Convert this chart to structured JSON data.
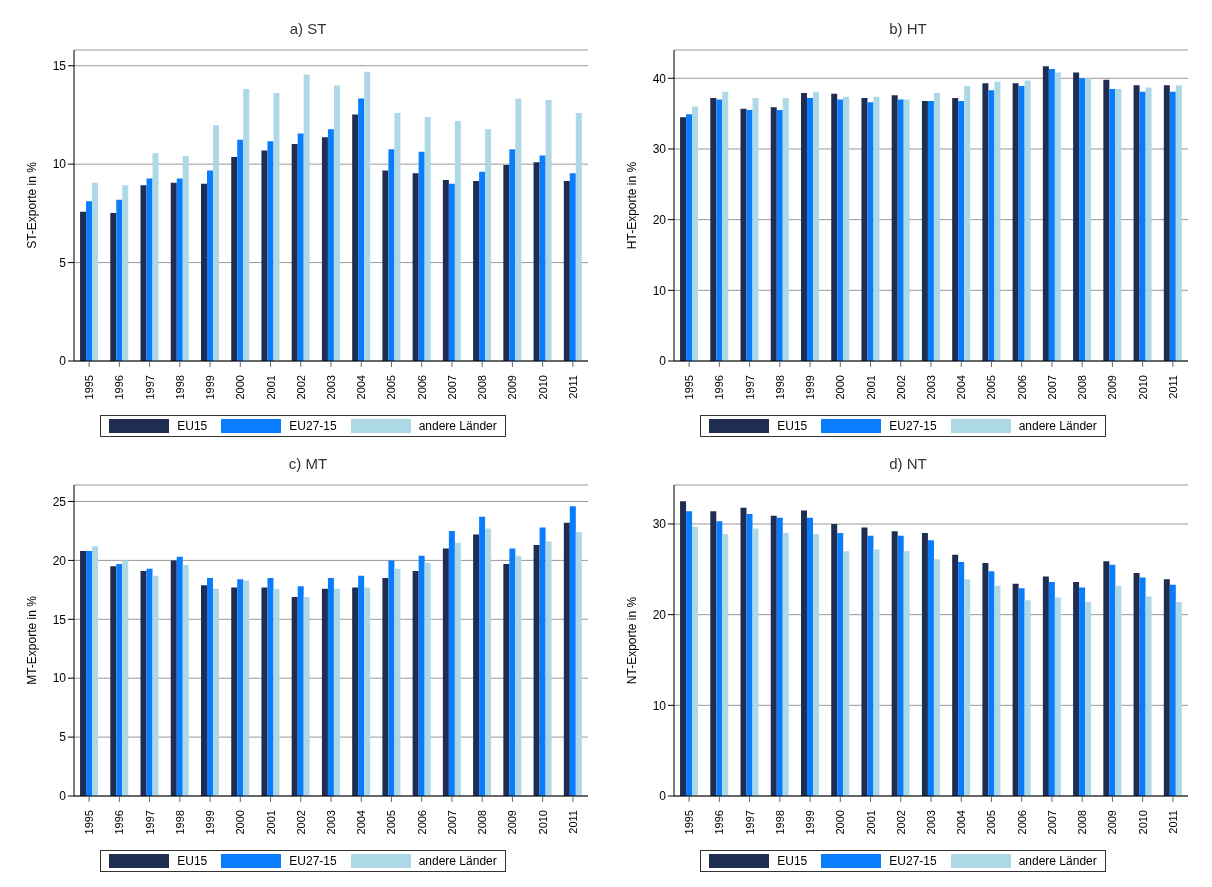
{
  "chart_data": [
    {
      "type": "bar",
      "title": "a) ST",
      "ylabel": "ST-Exporte in %",
      "categories": [
        "1995",
        "1996",
        "1997",
        "1998",
        "1999",
        "2000",
        "2001",
        "2002",
        "2003",
        "2004",
        "2005",
        "2006",
        "2007",
        "2008",
        "2009",
        "2010",
        "2011"
      ],
      "ylim": [
        0,
        15.8
      ],
      "yticks": [
        0,
        5,
        10,
        15
      ],
      "grid": "y",
      "legend": "bottom",
      "series": [
        {
          "name": "EU15",
          "color": "#1f2d52",
          "values": [
            7.58,
            7.52,
            8.93,
            9.06,
            9.0,
            10.36,
            10.69,
            11.03,
            11.37,
            12.52,
            9.68,
            9.54,
            9.2,
            9.14,
            9.96,
            10.1,
            9.14
          ]
        },
        {
          "name": "EU27-15",
          "color": "#0a7dfc",
          "values": [
            8.11,
            8.19,
            9.27,
            9.27,
            9.68,
            11.24,
            11.16,
            11.56,
            11.77,
            13.34,
            10.76,
            10.63,
            9.0,
            9.62,
            10.76,
            10.44,
            9.54
          ]
        },
        {
          "name": "andere Länder",
          "color": "#add8e6",
          "values": [
            9.06,
            8.93,
            10.55,
            10.42,
            11.98,
            13.82,
            13.61,
            14.56,
            14.0,
            14.69,
            12.6,
            12.39,
            12.19,
            11.77,
            13.34,
            13.26,
            12.6
          ]
        }
      ]
    },
    {
      "type": "bar",
      "title": "b) HT",
      "ylabel": "HT-Exporte in %",
      "categories": [
        "1995",
        "1996",
        "1997",
        "1998",
        "1999",
        "2000",
        "2001",
        "2002",
        "2003",
        "2004",
        "2005",
        "2006",
        "2007",
        "2008",
        "2009",
        "2010",
        "2011"
      ],
      "ylim": [
        0,
        44
      ],
      "yticks": [
        0,
        10,
        20,
        30,
        40
      ],
      "grid": "y",
      "legend": "bottom",
      "series": [
        {
          "name": "EU15",
          "color": "#1f2d52",
          "values": [
            34.5,
            37.2,
            35.7,
            35.9,
            37.9,
            37.8,
            37.2,
            37.6,
            36.8,
            37.2,
            39.3,
            39.3,
            41.7,
            40.8,
            39.8,
            39.0,
            39.0
          ]
        },
        {
          "name": "EU27-15",
          "color": "#0a7dfc",
          "values": [
            34.9,
            37.0,
            35.5,
            35.5,
            37.2,
            37.0,
            36.6,
            37.0,
            36.8,
            36.8,
            38.3,
            38.9,
            41.3,
            40.0,
            38.5,
            38.1,
            38.1
          ]
        },
        {
          "name": "andere Länder",
          "color": "#add8e6",
          "values": [
            36.0,
            38.1,
            37.2,
            37.2,
            38.1,
            37.4,
            37.4,
            37.0,
            37.9,
            38.9,
            39.5,
            39.7,
            40.8,
            40.0,
            38.5,
            38.7,
            39.0
          ]
        }
      ]
    },
    {
      "type": "bar",
      "title": "c) MT",
      "ylabel": "MT-Exporte in %",
      "categories": [
        "1995",
        "1996",
        "1997",
        "1998",
        "1999",
        "2000",
        "2001",
        "2002",
        "2003",
        "2004",
        "2005",
        "2006",
        "2007",
        "2008",
        "2009",
        "2010",
        "2011"
      ],
      "ylim": [
        0,
        26.4
      ],
      "yticks": [
        0,
        5,
        10,
        15,
        20,
        25
      ],
      "grid": "y",
      "legend": "bottom",
      "series": [
        {
          "name": "EU15",
          "color": "#1f2d52",
          "values": [
            20.8,
            19.5,
            19.1,
            20.0,
            17.9,
            17.7,
            17.7,
            16.9,
            17.6,
            17.7,
            18.5,
            19.1,
            21.0,
            22.2,
            19.7,
            21.3,
            23.2
          ]
        },
        {
          "name": "EU27-15",
          "color": "#0a7dfc",
          "values": [
            20.8,
            19.7,
            19.3,
            20.3,
            18.5,
            18.4,
            18.5,
            17.8,
            18.5,
            18.7,
            20.0,
            20.4,
            22.5,
            23.7,
            21.0,
            22.8,
            24.6
          ]
        },
        {
          "name": "andere Länder",
          "color": "#add8e6",
          "values": [
            21.2,
            20.0,
            18.7,
            19.6,
            17.6,
            18.3,
            17.6,
            16.9,
            17.6,
            17.7,
            19.3,
            19.8,
            21.5,
            22.7,
            20.4,
            21.6,
            22.4
          ]
        }
      ]
    },
    {
      "type": "bar",
      "title": "d) NT",
      "ylabel": "NT-Exporte in %",
      "categories": [
        "1995",
        "1996",
        "1997",
        "1998",
        "1999",
        "2000",
        "2001",
        "2002",
        "2003",
        "2004",
        "2005",
        "2006",
        "2007",
        "2008",
        "2009",
        "2010",
        "2011"
      ],
      "ylim": [
        0,
        34.3
      ],
      "yticks": [
        0,
        10,
        20,
        30
      ],
      "grid": "y",
      "legend": "bottom",
      "series": [
        {
          "name": "EU15",
          "color": "#1f2d52",
          "values": [
            32.5,
            31.4,
            31.8,
            30.9,
            31.5,
            30.0,
            29.6,
            29.2,
            29.0,
            26.6,
            25.7,
            23.4,
            24.2,
            23.6,
            25.9,
            24.6,
            23.9
          ]
        },
        {
          "name": "EU27-15",
          "color": "#0a7dfc",
          "values": [
            31.4,
            30.3,
            31.1,
            30.7,
            30.7,
            29.0,
            28.7,
            28.7,
            28.2,
            25.8,
            24.8,
            22.9,
            23.6,
            23.0,
            25.5,
            24.1,
            23.3
          ]
        },
        {
          "name": "andere Länder",
          "color": "#add8e6",
          "values": [
            29.7,
            28.9,
            29.5,
            29.0,
            28.9,
            27.0,
            27.2,
            27.0,
            26.1,
            23.9,
            23.2,
            21.6,
            21.9,
            21.4,
            23.2,
            22.0,
            21.4
          ]
        }
      ]
    }
  ]
}
